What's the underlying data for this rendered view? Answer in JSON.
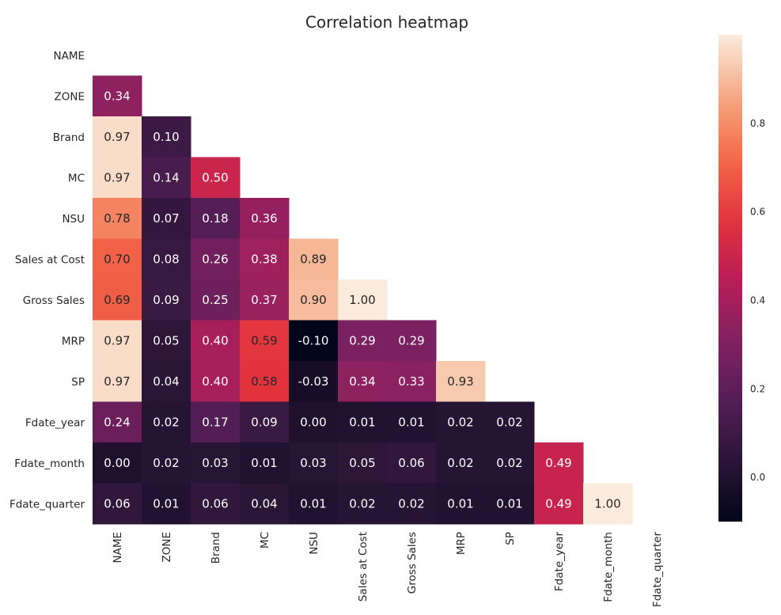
{
  "chart_data": {
    "type": "heatmap",
    "title": "Correlation heatmap",
    "labels": [
      "NAME",
      "ZONE",
      "Brand",
      "MC",
      "NSU",
      "Sales at Cost",
      "Gross Sales",
      "MRP",
      "SP",
      "Fdate_year",
      "Fdate_month",
      "Fdate_quarter"
    ],
    "mask": "upper triangle including diagonal",
    "values": [
      [],
      [
        "0.34"
      ],
      [
        "0.97",
        "0.10"
      ],
      [
        "0.97",
        "0.14",
        "0.50"
      ],
      [
        "0.78",
        "0.07",
        "0.18",
        "0.36"
      ],
      [
        "0.70",
        "0.08",
        "0.26",
        "0.38",
        "0.89"
      ],
      [
        "0.69",
        "0.09",
        "0.25",
        "0.37",
        "0.90",
        "1.00"
      ],
      [
        "0.97",
        "0.05",
        "0.40",
        "0.59",
        "-0.10",
        "0.29",
        "0.29"
      ],
      [
        "0.97",
        "0.04",
        "0.40",
        "0.58",
        "-0.03",
        "0.34",
        "0.33",
        "0.93"
      ],
      [
        "0.24",
        "0.02",
        "0.17",
        "0.09",
        "0.00",
        "0.01",
        "0.01",
        "0.02",
        "0.02"
      ],
      [
        "0.00",
        "0.02",
        "0.03",
        "0.01",
        "0.03",
        "0.05",
        "0.06",
        "0.02",
        "0.02",
        "0.49"
      ],
      [
        "0.06",
        "0.01",
        "0.06",
        "0.04",
        "0.01",
        "0.02",
        "0.02",
        "0.01",
        "0.01",
        "0.49",
        "1.00"
      ]
    ],
    "colorscale": "rocket",
    "vmin": -0.1,
    "vmax": 1.0,
    "colorbar_ticks": [
      "0.0",
      "0.2",
      "0.4",
      "0.6",
      "0.8"
    ],
    "legend": "colorbar at right",
    "grid": false
  }
}
